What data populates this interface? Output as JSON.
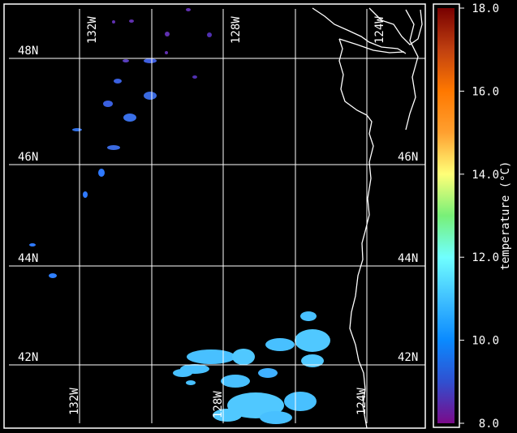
{
  "map": {
    "latitude_labels": [
      "48N",
      "46N",
      "44N",
      "42N"
    ],
    "longitude_labels": [
      "132W",
      "128W",
      "124W"
    ],
    "background_color": "#000000",
    "coastline_color": "#ffffff",
    "gridline_color": "#ffffff"
  },
  "colorbar": {
    "label": "temperature (°C)",
    "ticks": [
      "18.0",
      "16.0",
      "14.0",
      "12.0",
      "10.0",
      "8.0"
    ],
    "range": [
      8.0,
      18.0
    ],
    "colors": [
      "#7a0a8a",
      "#3050d0",
      "#0a8aff",
      "#40c0ff",
      "#70ffff",
      "#78f078",
      "#ffff78",
      "#ffa030",
      "#ff7800",
      "#c04010",
      "#780000"
    ]
  }
}
